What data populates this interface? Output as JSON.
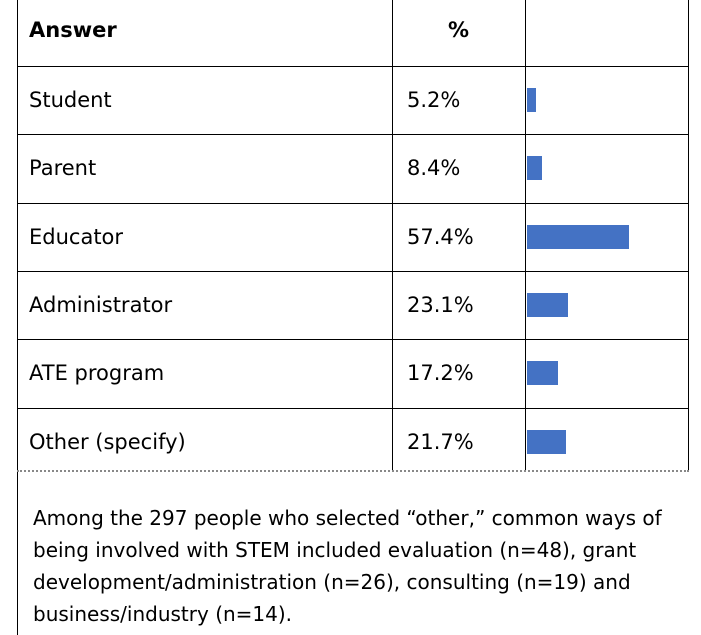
{
  "table": {
    "header": {
      "answer": "Answer",
      "percent": "%"
    },
    "rows": [
      {
        "answer": "Student",
        "value": 5.2,
        "value_label": "5.2%"
      },
      {
        "answer": "Parent",
        "value": 8.4,
        "value_label": "8.4%"
      },
      {
        "answer": "Educator",
        "value": 57.4,
        "value_label": "57.4%"
      },
      {
        "answer": "Administrator",
        "value": 23.1,
        "value_label": "23.1%"
      },
      {
        "answer": "ATE program",
        "value": 17.2,
        "value_label": "17.2%"
      },
      {
        "answer": "Other (specify)",
        "value": 21.7,
        "value_label": "21.7%"
      }
    ],
    "bar_color": "#4472c4",
    "note": "Among the 297 people who selected “other,” common ways of being involved with STEM included evaluation (n=48), grant development/administration (n=26), consulting (n=19) and business/industry (n=14)."
  }
}
